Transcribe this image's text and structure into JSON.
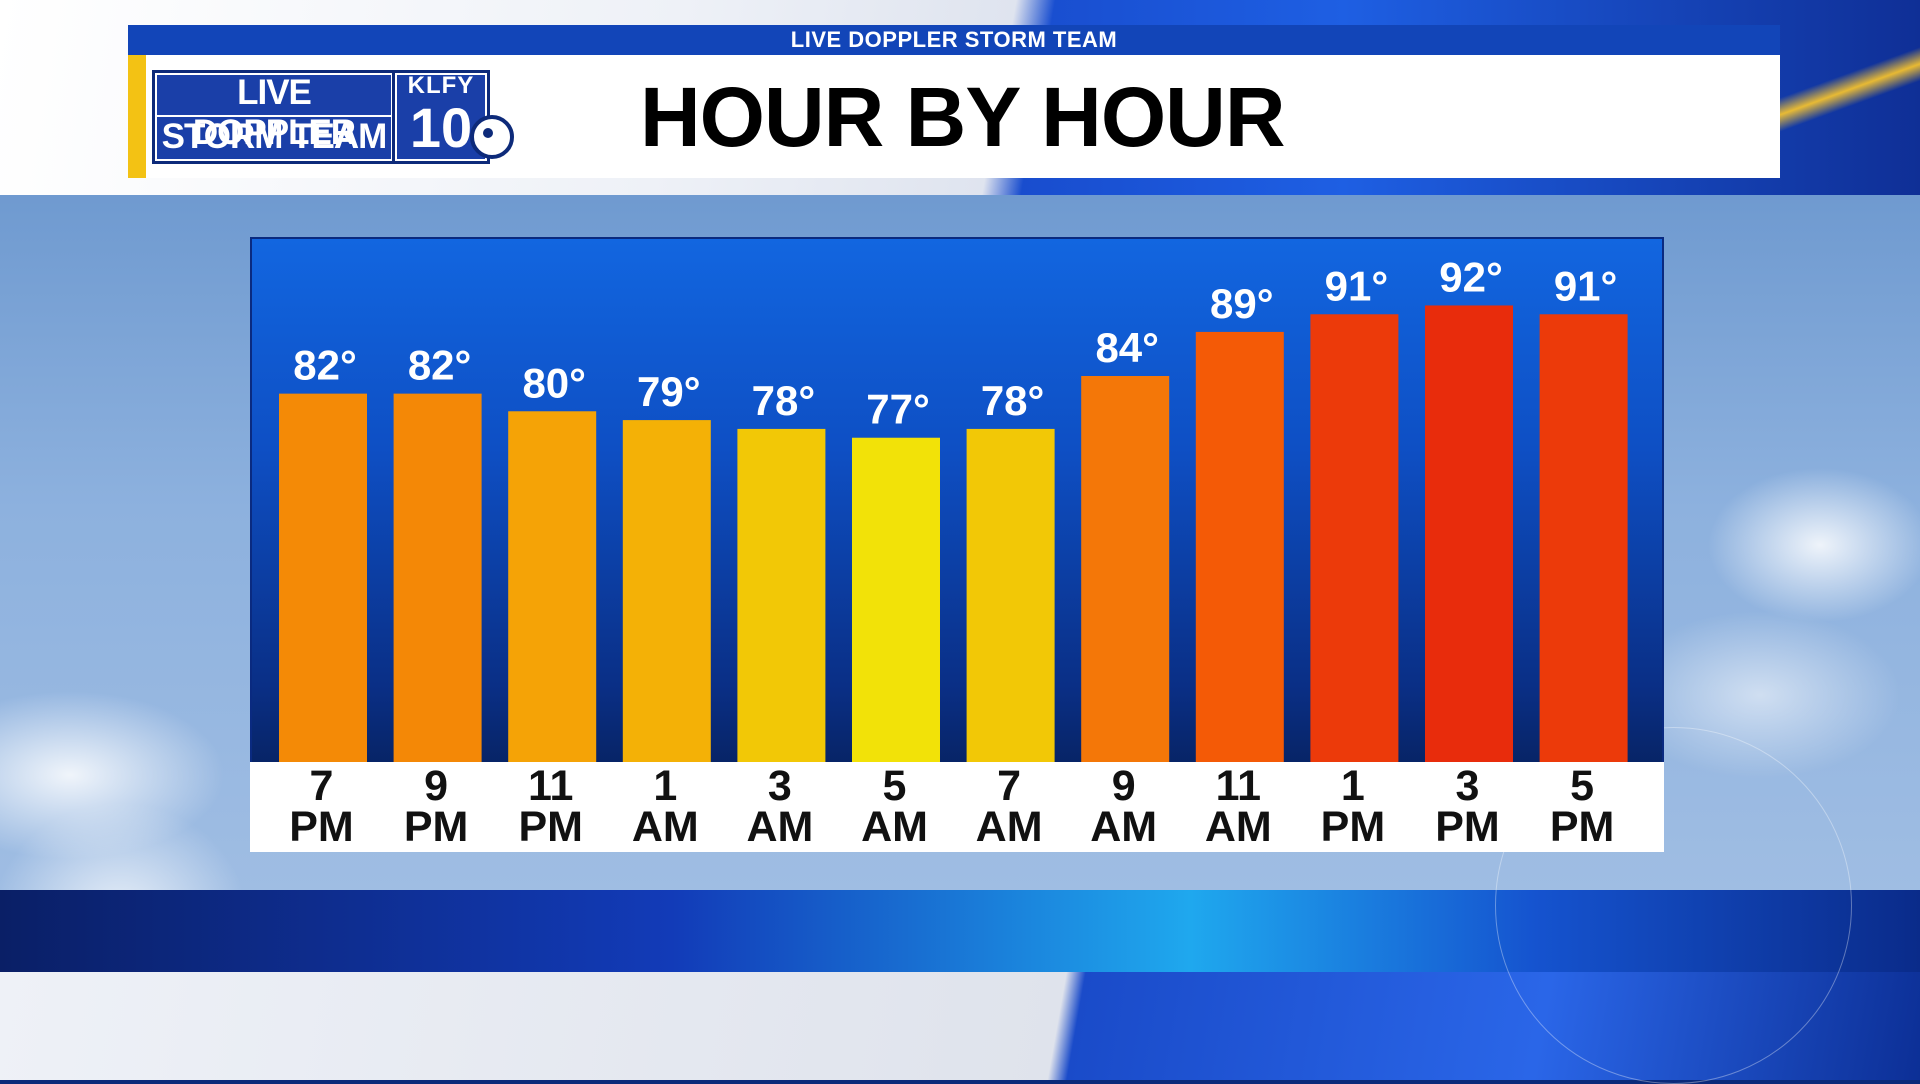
{
  "header": {
    "strip_text": "LIVE DOPPLER STORM TEAM",
    "title": "HOUR BY HOUR",
    "logo_line1": "LIVE DOPPLER",
    "logo_line2": "STORM TEAM",
    "station_call": "KLFY",
    "station_number": "10"
  },
  "chart_data": {
    "type": "bar",
    "title": "HOUR BY HOUR",
    "categories": [
      "7 PM",
      "9 PM",
      "11 PM",
      "1 AM",
      "3 AM",
      "5 AM",
      "7 AM",
      "9 AM",
      "11 AM",
      "1 PM",
      "3 PM",
      "5 PM"
    ],
    "category_lines": [
      [
        "7",
        "PM"
      ],
      [
        "9",
        "PM"
      ],
      [
        "11",
        "PM"
      ],
      [
        "1",
        "AM"
      ],
      [
        "3",
        "AM"
      ],
      [
        "5",
        "AM"
      ],
      [
        "7",
        "AM"
      ],
      [
        "9",
        "AM"
      ],
      [
        "11",
        "AM"
      ],
      [
        "1",
        "PM"
      ],
      [
        "3",
        "PM"
      ],
      [
        "5",
        "PM"
      ]
    ],
    "values": [
      82,
      82,
      80,
      79,
      78,
      77,
      78,
      84,
      89,
      91,
      92,
      91
    ],
    "value_labels": [
      "82°",
      "82°",
      "80°",
      "79°",
      "78°",
      "77°",
      "78°",
      "84°",
      "89°",
      "91°",
      "92°",
      "91°"
    ],
    "bar_colors": [
      "#f48a06",
      "#f48806",
      "#f5a306",
      "#f4b106",
      "#f2c806",
      "#f2e208",
      "#f2c806",
      "#f47708",
      "#f45a06",
      "#ec3a0a",
      "#e82c0c",
      "#ec3a0a"
    ],
    "ylim": [
      40,
      95
    ],
    "grid": false,
    "legend": "none"
  },
  "colors": {
    "accent_yellow": "#f3c214",
    "brand_blue": "#1245b8"
  }
}
